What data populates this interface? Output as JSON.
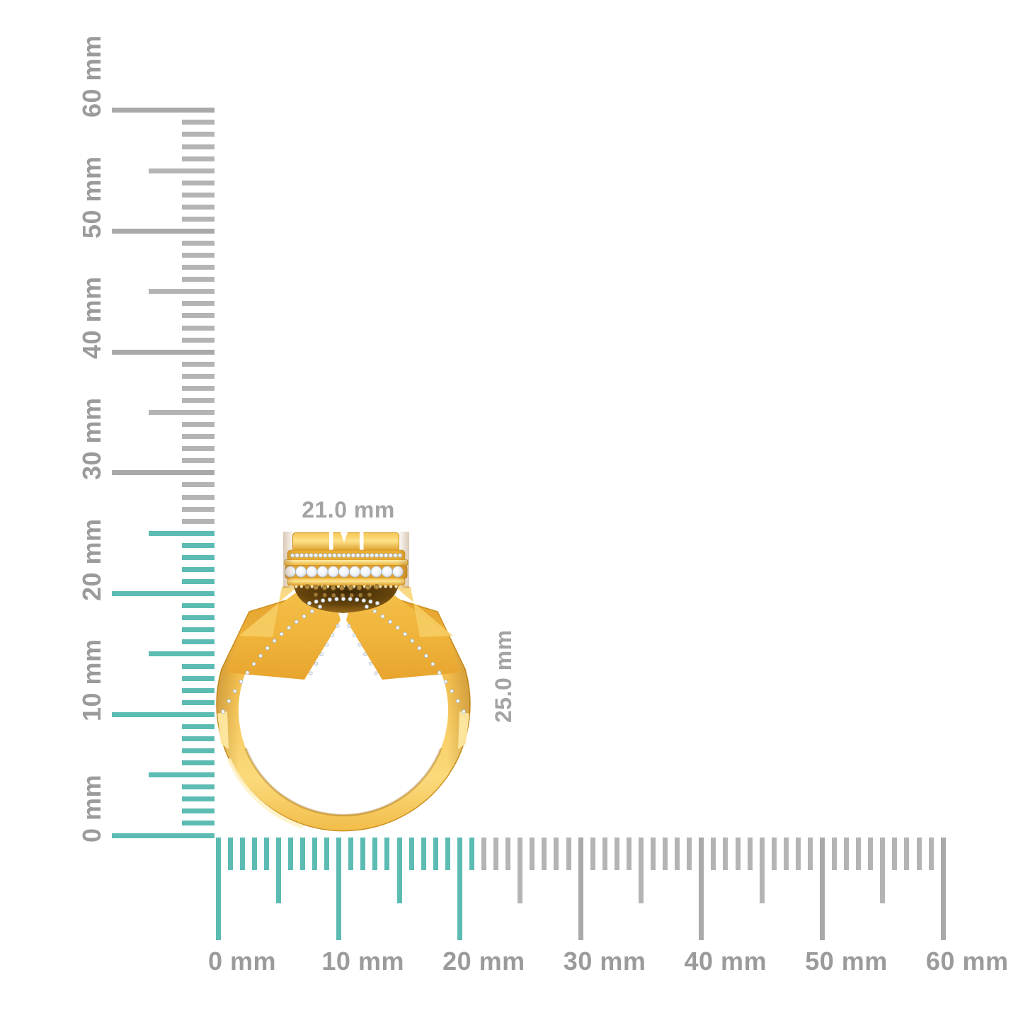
{
  "rulers": {
    "unit": "mm",
    "vertical": {
      "min_mm": 0,
      "max_mm": 60,
      "major_step_mm": 10,
      "medium_step_mm": 5,
      "minor_step_mm": 1,
      "highlight_to_mm": 25,
      "major_labels": [
        "0 mm",
        "10 mm",
        "20 mm",
        "30 mm",
        "40 mm",
        "50 mm",
        "60 mm"
      ]
    },
    "horizontal": {
      "min_mm": 0,
      "max_mm": 60,
      "major_step_mm": 10,
      "medium_step_mm": 5,
      "minor_step_mm": 1,
      "highlight_to_mm": 21,
      "major_labels": [
        "0 mm",
        "10 mm",
        "20 mm",
        "30 mm",
        "40 mm",
        "50 mm",
        "60 mm"
      ]
    }
  },
  "dimensions": {
    "width_label": "21.0 mm",
    "height_label": "25.0 mm"
  },
  "colors": {
    "background": "#ffffff",
    "highlight_teal": "#5cbcb3",
    "tick_gray": "#b4b4b4",
    "tick_gray_major": "#a9a9a9",
    "ruler_label_gray": "#9b9b9b",
    "dimension_label_gray": "#a4a4a4",
    "gold_base": "#f3ba45",
    "gold_light": "#fbd97a",
    "gold_deep": "#c9881a",
    "bowl_shadow": "#64430c",
    "diamond_white": "#f3f7fa",
    "champagne_diamond": "#b38c42"
  }
}
